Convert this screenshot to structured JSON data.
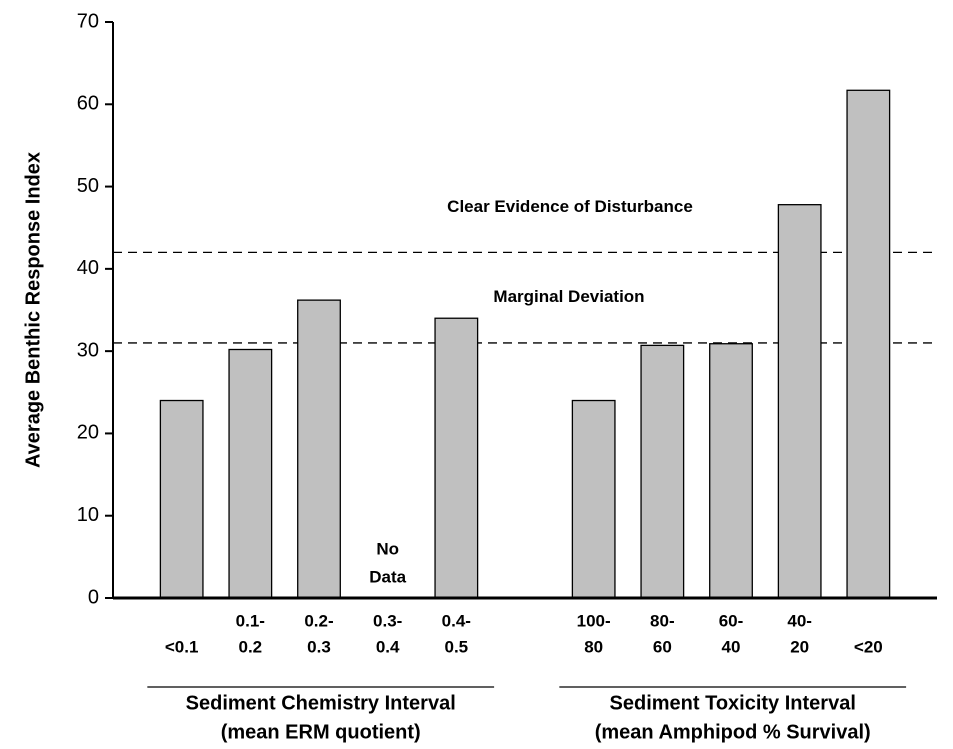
{
  "chart_data": {
    "type": "bar",
    "y_label": "Average Benthic Response Index",
    "categories": [
      [
        "<0.1"
      ],
      [
        "0.1-",
        "0.2"
      ],
      [
        "0.2-",
        "0.3"
      ],
      [
        "0.3-",
        "0.4"
      ],
      [
        "0.4-",
        "0.5"
      ],
      null,
      [
        "100-",
        "80"
      ],
      [
        "80-",
        "60"
      ],
      [
        "60-",
        "40"
      ],
      [
        "40-",
        "20"
      ],
      [
        "<20"
      ]
    ],
    "values": [
      24,
      30.2,
      36.2,
      null,
      34,
      null,
      24,
      30.7,
      30.9,
      47.8,
      61.7
    ],
    "color": "#c0c0c0",
    "ylim": [
      0,
      70
    ],
    "yticks": [
      0,
      10,
      20,
      30,
      40,
      50,
      60,
      70
    ],
    "reference_lines": [
      42,
      31
    ],
    "zones": [
      "Clear Evidence of Disturbance",
      "Marginal Deviation"
    ],
    "no_data_label": [
      "No",
      "Data"
    ],
    "groups": [
      [
        "Sediment Chemistry Interval",
        "(mean ERM quotient)"
      ],
      [
        "Sediment Toxicity Interval",
        "(mean Amphipod % Survival)"
      ]
    ]
  }
}
